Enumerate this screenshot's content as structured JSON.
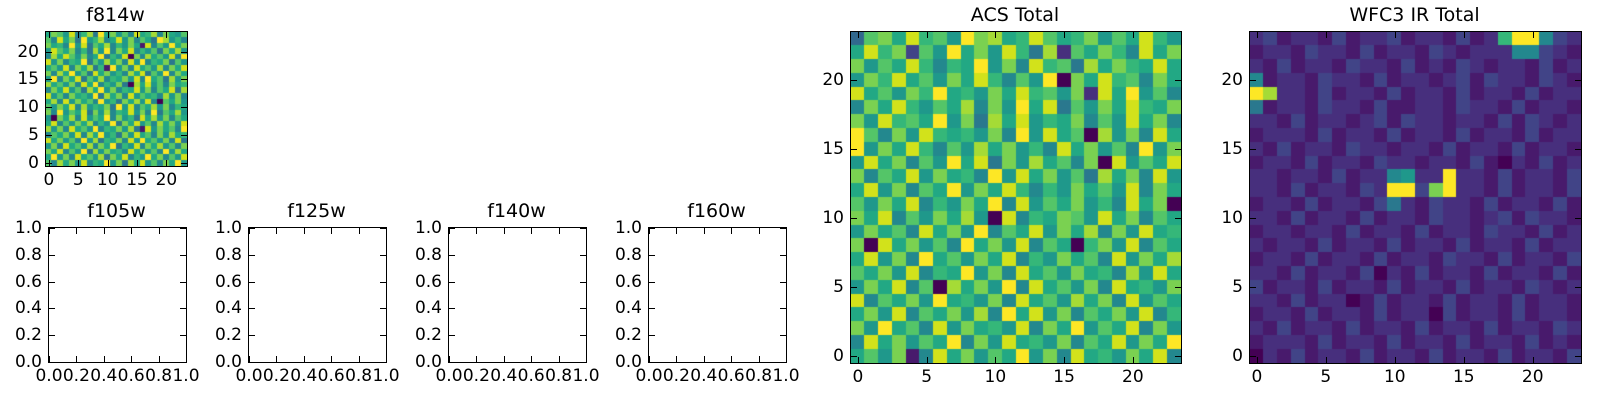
{
  "figure": {
    "background": "#ffffff",
    "axes_edge_color": "#000000",
    "text_color": "#000000"
  },
  "viridis_palette_16": [
    "#440154",
    "#481a6c",
    "#472f7d",
    "#414487",
    "#39568c",
    "#31688e",
    "#2a788e",
    "#23888e",
    "#1f988b",
    "#22a884",
    "#35b779",
    "#54c568",
    "#7ad151",
    "#a5db36",
    "#d2e21b",
    "#fde725"
  ],
  "chart_data": [
    {
      "id": "f814w",
      "type": "heatmap",
      "title": "f814w",
      "colormap": "viridis",
      "grid_size": 24,
      "xlim": [
        -0.5,
        23.5
      ],
      "ylim": [
        -0.5,
        23.5
      ],
      "xticks": [
        0,
        5,
        10,
        15,
        20
      ],
      "xtick_labels": [
        "0",
        "5",
        "10",
        "15",
        "20"
      ],
      "yticks": [
        0,
        5,
        10,
        15,
        20
      ],
      "ytick_labels": [
        "0",
        "5",
        "10",
        "15",
        "20"
      ],
      "grid_rows_top_to_bottom": [
        "9cb8e7ad6f9c8b7e9ad7c98b",
        "b7e9c6f8ad79e8c7b96fd8a7",
        "c9a7f8e6b9d7a8c91e7b8f9c",
        "8eb9c7a6d8f7c9e7a8b6c9d8",
        "7d9eb8c79f6a8e0c7d9b8e7f",
        "e8c7a9f6b8d9c7e8f7a9c6b8",
        "9b8e7c9d6a1f8c7e9b8d7c9e",
        "c7d9f8b6e9c8a7d9e6b8f7c9",
        "8f7c9e6b8d7a9c8e7f9b6d8c",
        "d9b8c7e9f7a8c60d9e8b7c9a",
        "7c9e8b6d9f8c7a9e8c7b9e6d",
        "e8b7c9a8f6d9c7e8b9a7d8c7",
        "9d7e8c9b7f8a6c9d8e70b9c8",
        "b8c9e7d8a9c6f8e7b9d8c7a9",
        "c7f8b9e6c8d7a9e8c7f6b9d8",
        "80c9d7e8b9f7c8a6e9d8c7b9",
        "9e7b8c9d7a8f6c9e8b7d9c8e",
        "d8c7e9b8f7a9c8d61e8c9b7f",
        "7b9c8e7d9f8a6c8e9b7c8d9a",
        "e9c8b7f8d6a9c7e8f9b8c7e6",
        "8c7e9b8d7c9f6a8e7c9d8b7c",
        "c9e7b8f6d8c9a7e9c8b7f8d9",
        "9f8c7e9b8d6c9e7a8f9c7b8e",
        "b7d9c8e7a9f8c6d9e8b7c9f8"
      ]
    },
    {
      "id": "f105w",
      "type": "empty-axes",
      "title": "f105w",
      "xlim": [
        0,
        1
      ],
      "ylim": [
        0,
        1
      ],
      "xticks": [
        0,
        0.2,
        0.4,
        0.6,
        0.8,
        1
      ],
      "xtick_labels": [
        "0.0",
        "0.2",
        "0.4",
        "0.6",
        "0.8",
        "1.0"
      ],
      "yticks": [
        0,
        0.2,
        0.4,
        0.6,
        0.8,
        1
      ],
      "ytick_labels": [
        "0.0",
        "0.2",
        "0.4",
        "0.6",
        "0.8",
        "1.0"
      ]
    },
    {
      "id": "f125w",
      "type": "empty-axes",
      "title": "f125w",
      "xlim": [
        0,
        1
      ],
      "ylim": [
        0,
        1
      ],
      "xticks": [
        0,
        0.2,
        0.4,
        0.6,
        0.8,
        1
      ],
      "xtick_labels": [
        "0.0",
        "0.2",
        "0.4",
        "0.6",
        "0.8",
        "1.0"
      ],
      "yticks": [
        0,
        0.2,
        0.4,
        0.6,
        0.8,
        1
      ],
      "ytick_labels": [
        "0.0",
        "0.2",
        "0.4",
        "0.6",
        "0.8",
        "1.0"
      ]
    },
    {
      "id": "f140w",
      "type": "empty-axes",
      "title": "f140w",
      "xlim": [
        0,
        1
      ],
      "ylim": [
        0,
        1
      ],
      "xticks": [
        0,
        0.2,
        0.4,
        0.6,
        0.8,
        1
      ],
      "xtick_labels": [
        "0.0",
        "0.2",
        "0.4",
        "0.6",
        "0.8",
        "1.0"
      ],
      "yticks": [
        0,
        0.2,
        0.4,
        0.6,
        0.8,
        1
      ],
      "ytick_labels": [
        "0.0",
        "0.2",
        "0.4",
        "0.6",
        "0.8",
        "1.0"
      ]
    },
    {
      "id": "f160w",
      "type": "empty-axes",
      "title": "f160w",
      "xlim": [
        0,
        1
      ],
      "ylim": [
        0,
        1
      ],
      "xticks": [
        0,
        0.2,
        0.4,
        0.6,
        0.8,
        1
      ],
      "xtick_labels": [
        "0.0",
        "0.2",
        "0.4",
        "0.6",
        "0.8",
        "1.0"
      ],
      "yticks": [
        0,
        0.2,
        0.4,
        0.6,
        0.8,
        1
      ],
      "ytick_labels": [
        "0.0",
        "0.2",
        "0.4",
        "0.6",
        "0.8",
        "1.0"
      ]
    },
    {
      "id": "acs_total",
      "type": "heatmap",
      "title": "ACS Total",
      "colormap": "viridis",
      "grid_size": 24,
      "xlim": [
        -0.5,
        23.5
      ],
      "ylim": [
        -0.5,
        23.5
      ],
      "xticks": [
        0,
        5,
        10,
        15,
        20
      ],
      "xtick_labels": [
        "0",
        "5",
        "10",
        "15",
        "20"
      ],
      "yticks": [
        0,
        5,
        10,
        15,
        20
      ],
      "ytick_labels": [
        "0",
        "5",
        "10",
        "15",
        "20"
      ],
      "grid_rows_top_to_bottom": [
        "5bc9eab8fcd9aeb9ac8b9ea8",
        "9eac3b8f9c8ea6d2b9ca7e9c",
        "c8b9ea7a9f8c7eab6d9ca9e9",
        "8cae9b8c9ea7b8f0c9eab7c9",
        "e9b8caf9a8c9eab8c2e9f8b7",
        "7c9ea8b9d7c8f9e6b8c9ea9c",
        "c8eab9f8c6d9e8a9c7b8e9c7",
        "fb7c8ea9a8c7f8e9b0d8c7e9",
        "f8c9ea7b8d9c8a7e9c8b7f8c",
        "8e9c7b8f9e6c8d9b7c0e8b9e",
        "c7b9e8c9a7f8e9c8b6d9c7e8",
        "9e8c7b9f8c9ea7a8c9b8e7c9",
        "b8c9e7a8c9f7e8b9c8a7e9c0",
        "c9e7b8c9d80e7a9cb8e9c7b9",
        "8c9b7e9c8f7b9e8c9d7c8e9a",
        "c0e9c8b7f9c8e7b90ac8e7b9",
        "9e8c7f9b8c9e7a8c9b7e8c9d",
        "b9c8e7a9f8c7e9b8c9a7d8e9",
        "8c9e7b0d9c8f7e9b8c7e9a8c",
        "e7b9c8f9a8c7e9b8d9c7e8b9",
        "9c8e7b9c8d7f9e8c7b9c8e7a",
        "c8f9b7e8c9a8e7c9f8b9e7c8",
        "7e9c8b9f7c8e9a8c7b9e8c9f",
        "9b8c17e9c8b9f8c7e9a8c9e7"
      ]
    },
    {
      "id": "wfc3_ir_total",
      "type": "heatmap",
      "title": "WFC3 IR Total",
      "colormap": "viridis",
      "grid_size": 24,
      "xlim": [
        -0.5,
        23.5
      ],
      "ylim": [
        -0.5,
        23.5
      ],
      "xticks": [
        0,
        5,
        10,
        15,
        20
      ],
      "xtick_labels": [
        "0",
        "5",
        "10",
        "15",
        "20"
      ],
      "yticks": [
        0,
        5,
        10,
        15,
        20
      ],
      "ytick_labels": [
        "0",
        "5",
        "10",
        "15",
        "20"
      ],
      "grid_rows_top_to_bottom": [
        "231221312231221312aff732",
        "122132213122132122277321",
        "213122132213121321221312",
        "712213221312212313221321",
        "fd2213122131221312213122",
        "612213221311221322131221",
        "221312212313221221313212",
        "122213122131221312213122",
        "213122132212213122131221",
        "122131221322122131021312",
        "22122131227822f221312213",
        "2213122132ff3cf221312213",
        "122131221362132213122131",
        "221312213122132212313221",
        "122122131221312213221312",
        "212213122131221312213122",
        "122131221312213221312213",
        "221312213021312213122131",
        "312213122131221312213212",
        "221312201312213122131221",
        "122131221312203122131221",
        "213122131221312213122132",
        "122213122131221312213121",
        "021312213122131221312213"
      ]
    }
  ]
}
